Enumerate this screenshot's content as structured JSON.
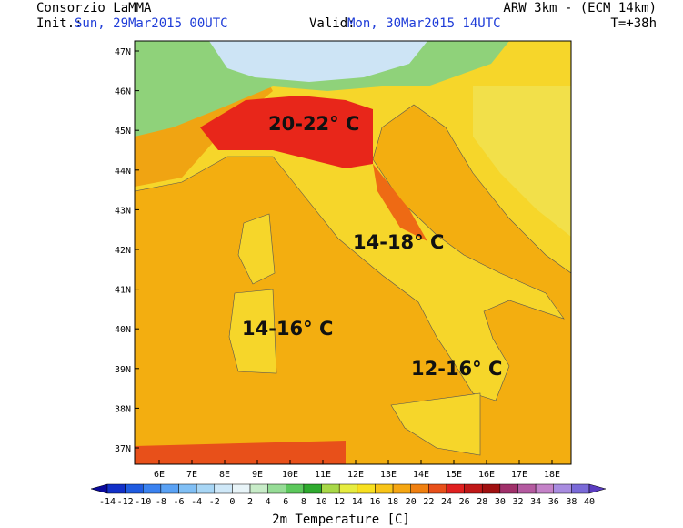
{
  "header": {
    "source": "Consorzio LaMMA",
    "init_label": "Init.:",
    "init_time": "Sun, 29Mar2015 00UTC",
    "valid_label": "Valid:",
    "valid_time": "Mon, 30Mar2015 14UTC",
    "model": "ARW 3km - (ECM_14km)",
    "lead": "T=+38h"
  },
  "map": {
    "lat_labels": [
      "47N",
      "46N",
      "45N",
      "44N",
      "43N",
      "42N",
      "41N",
      "40N",
      "39N",
      "38N",
      "37N"
    ],
    "lon_labels": [
      "6E",
      "7E",
      "8E",
      "9E",
      "10E",
      "11E",
      "12E",
      "13E",
      "14E",
      "15E",
      "16E",
      "17E",
      "18E"
    ],
    "annotations": [
      "20-22° C",
      "14-18° C",
      "14-16° C",
      "12-16° C"
    ]
  },
  "colorbar": {
    "title": "2m Temperature [C]",
    "labels": [
      -14,
      -12,
      -10,
      -8,
      -6,
      -4,
      -2,
      0,
      2,
      4,
      6,
      8,
      10,
      12,
      14,
      16,
      18,
      20,
      22,
      24,
      26,
      28,
      30,
      32,
      34,
      36,
      38,
      40
    ],
    "colors": [
      "#0a0a9c",
      "#1230c8",
      "#1f5be0",
      "#3a82f0",
      "#5aa2f5",
      "#80bff5",
      "#a8d6f5",
      "#cfe8f8",
      "#e8f4f8",
      "#c8ecc8",
      "#96dc96",
      "#5cc85c",
      "#2eaa2e",
      "#a8d848",
      "#e6ec40",
      "#f8e020",
      "#f8c418",
      "#f5a612",
      "#f08010",
      "#e8501a",
      "#e02020",
      "#c01818",
      "#a01010",
      "#a0306a",
      "#b45aa0",
      "#c482c8",
      "#a88ce0",
      "#7a6ad8",
      "#5a3cc0"
    ]
  }
}
